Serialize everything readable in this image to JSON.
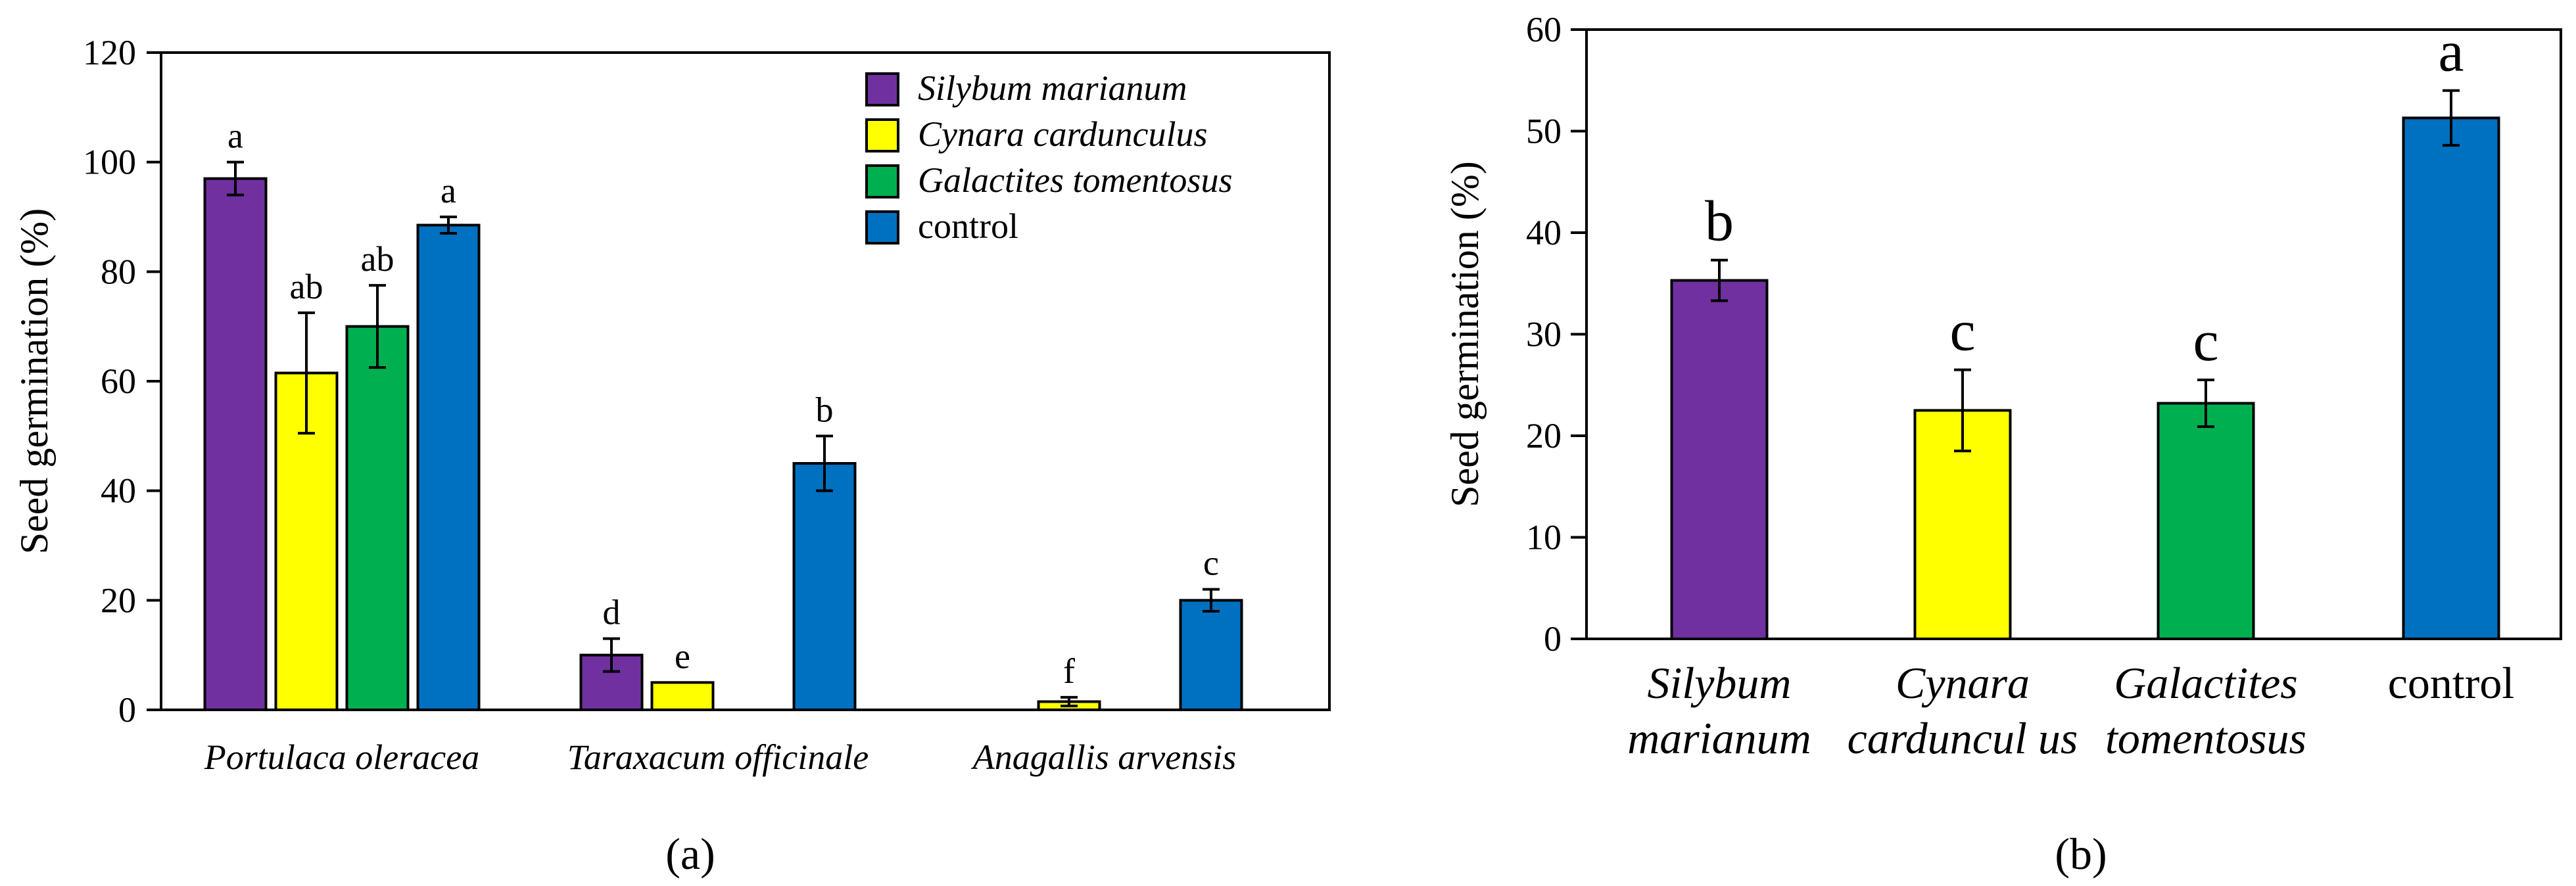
{
  "chart_data": [
    {
      "panel": "(a)",
      "type": "bar",
      "ylabel": "Seed germination  (%)",
      "ylim": [
        0,
        120
      ],
      "yticks": [
        0,
        20,
        40,
        60,
        80,
        100,
        120
      ],
      "categories": [
        "Portulaca oleracea",
        "Taraxacum officinale",
        "Anagallis arvensis"
      ],
      "legend": {
        "placement": "top-right"
      },
      "series": [
        {
          "name": "Silybum marianum",
          "italic": true,
          "color": "#7030A0",
          "values": [
            97,
            10,
            null
          ],
          "errors": [
            3,
            3,
            null
          ],
          "letters": [
            "a",
            "d",
            null
          ]
        },
        {
          "name": "Cynara cardunculus",
          "italic": true,
          "color": "#FFFF00",
          "values": [
            61.5,
            5,
            1.5
          ],
          "errors": [
            11,
            0,
            0.8
          ],
          "letters": [
            "ab",
            "e",
            "f"
          ]
        },
        {
          "name": "Galactites tomentosus",
          "italic": true,
          "color": "#00B050",
          "values": [
            70,
            null,
            null
          ],
          "errors": [
            7.5,
            null,
            null
          ],
          "letters": [
            "ab",
            null,
            null
          ]
        },
        {
          "name": "control",
          "italic": false,
          "color": "#0070C0",
          "values": [
            88.5,
            45,
            20
          ],
          "errors": [
            1.5,
            5,
            2
          ],
          "letters": [
            "a",
            "b",
            "c"
          ]
        }
      ]
    },
    {
      "panel": "(b)",
      "type": "bar",
      "ylabel": "Seed germination  (%)",
      "ylim": [
        0,
        60
      ],
      "yticks": [
        0,
        10,
        20,
        30,
        40,
        50,
        60
      ],
      "categories": [
        {
          "lines": [
            "Silybum",
            "marianum"
          ],
          "italic": true
        },
        {
          "lines": [
            "Cynara",
            "carduncul us"
          ],
          "italic": true
        },
        {
          "lines": [
            "Galactites",
            "tomentosus"
          ],
          "italic": true
        },
        {
          "lines": [
            "control"
          ],
          "italic": false
        }
      ],
      "values": [
        35.3,
        22.5,
        23.2,
        51.3
      ],
      "errors": [
        2.0,
        4.0,
        2.3,
        2.7
      ],
      "letters": [
        "b",
        "c",
        "c",
        "a"
      ],
      "colors": [
        "#7030A0",
        "#FFFF00",
        "#00B050",
        "#0070C0"
      ]
    }
  ]
}
